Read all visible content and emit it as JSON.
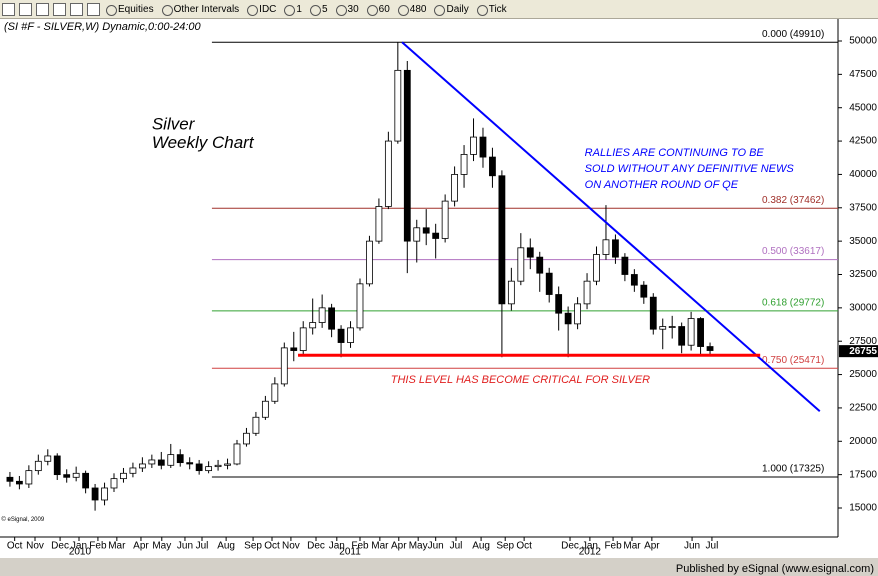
{
  "toolbar": {
    "items": [
      "Equities",
      "Other Intervals",
      "IDC",
      "1",
      "5",
      "30",
      "60",
      "480",
      "Daily",
      "Tick"
    ]
  },
  "footer": "Published by eSignal (www.esignal.com)",
  "chart_data": {
    "type": "candlestick",
    "title": "(SI #F - SILVER,W) Dynamic,0:00-24:00",
    "annotations": [
      {
        "text": "Silver",
        "x": 30,
        "y": 43700,
        "color": "#000000",
        "style": "title"
      },
      {
        "text": "Weekly Chart",
        "x": 30,
        "y": 42300,
        "color": "#000000",
        "style": "title"
      },
      {
        "text": "RALLIES ARE CONTINUING TO BE",
        "x": 121.5,
        "y": 41600,
        "color": "#0000ff",
        "style": "note"
      },
      {
        "text": "SOLD WITHOUT ANY DEFINITIVE NEWS",
        "x": 121.5,
        "y": 40400,
        "color": "#0000ff",
        "style": "note"
      },
      {
        "text": "ON ANOTHER ROUND OF QE",
        "x": 121.5,
        "y": 39200,
        "color": "#0000ff",
        "style": "note"
      },
      {
        "text": "THIS LEVEL HAS BECOME CRITICAL FOR SILVER",
        "x": 80.5,
        "y": 24600,
        "color": "#e02020",
        "style": "note"
      },
      {
        "text": "© eSignal, 2009",
        "x": -1.8,
        "y": 14150,
        "color": "#000000",
        "style": "tiny"
      }
    ],
    "x": [
      0,
      2,
      4,
      6,
      8,
      10,
      12,
      14,
      16,
      18,
      20,
      22,
      24,
      26,
      28,
      30,
      32,
      34,
      36,
      38,
      40,
      42,
      44,
      46,
      48,
      50,
      52,
      54,
      56,
      58,
      60,
      62,
      64,
      66,
      68,
      70,
      72,
      74,
      76,
      78,
      80,
      82,
      84,
      86,
      88,
      90,
      92,
      94,
      96,
      98,
      100,
      102,
      104,
      106,
      108,
      110,
      112,
      114,
      116,
      118,
      120,
      122,
      124,
      126,
      128,
      130,
      132,
      134,
      136,
      138,
      140,
      142,
      144,
      146,
      148
    ],
    "open": [
      17300,
      17000,
      16800,
      17800,
      18500,
      18900,
      17500,
      17300,
      17600,
      16500,
      15600,
      16500,
      17200,
      17600,
      18000,
      18300,
      18600,
      18200,
      19000,
      18400,
      18300,
      17800,
      18100,
      18200,
      18300,
      19800,
      20600,
      21800,
      23000,
      24300,
      27000,
      26800,
      28500,
      28900,
      30000,
      28400,
      27400,
      28500,
      31800,
      35000,
      37600,
      42500,
      47800,
      35000,
      36000,
      35600,
      35200,
      38000,
      40000,
      41500,
      42800,
      41300,
      39900,
      30300,
      32000,
      34500,
      33800,
      32600,
      31000,
      29600,
      28800,
      30300,
      32000,
      34000,
      35100,
      33800,
      32500,
      31700,
      30800,
      28400,
      28600,
      28600,
      27200,
      29200,
      27100
    ],
    "high": [
      17700,
      17400,
      18200,
      19000,
      19400,
      19100,
      17900,
      18100,
      17800,
      16800,
      16900,
      17600,
      18000,
      18400,
      18800,
      19000,
      19200,
      19800,
      19400,
      18800,
      18600,
      18500,
      18600,
      18700,
      20100,
      21000,
      22200,
      23400,
      24800,
      27400,
      28200,
      29000,
      30700,
      31000,
      30300,
      28700,
      29000,
      32200,
      35400,
      38200,
      43200,
      49900,
      48500,
      36600,
      37400,
      36300,
      38500,
      40600,
      42200,
      44200,
      43500,
      42000,
      40300,
      33000,
      35600,
      35200,
      34200,
      33000,
      31600,
      30100,
      30800,
      32600,
      34600,
      37700,
      35500,
      34100,
      32900,
      32000,
      31100,
      29200,
      29400,
      28900,
      29700,
      29300,
      27400
    ],
    "low": [
      16600,
      16400,
      16500,
      17500,
      18200,
      17100,
      16900,
      17000,
      16100,
      14800,
      15200,
      16200,
      16900,
      17300,
      17700,
      18000,
      17900,
      18000,
      18100,
      17900,
      17500,
      17600,
      17800,
      17900,
      18200,
      19600,
      20400,
      21600,
      22800,
      24100,
      26000,
      26500,
      28000,
      28500,
      27800,
      26300,
      27000,
      28300,
      31600,
      34800,
      37400,
      42300,
      32600,
      33400,
      34700,
      33700,
      34900,
      37600,
      39000,
      41000,
      40500,
      39000,
      26300,
      29800,
      31700,
      32900,
      31200,
      30400,
      28300,
      26300,
      28400,
      29900,
      31700,
      33600,
      33300,
      32000,
      31200,
      30300,
      28000,
      26900,
      27700,
      26600,
      26800,
      26500,
      26500
    ],
    "close": [
      17000,
      16800,
      17800,
      18500,
      18900,
      17500,
      17300,
      17600,
      16500,
      15600,
      16500,
      17200,
      17600,
      18000,
      18300,
      18600,
      18200,
      19000,
      18400,
      18300,
      17800,
      18100,
      18200,
      18300,
      19800,
      20600,
      21800,
      23000,
      24300,
      27000,
      26800,
      28500,
      28900,
      30000,
      28400,
      27400,
      28500,
      31800,
      35000,
      37600,
      42500,
      47800,
      35000,
      36000,
      35600,
      35200,
      38000,
      40000,
      41500,
      42800,
      41300,
      39900,
      30300,
      32000,
      34500,
      33800,
      32600,
      31000,
      29600,
      28800,
      30300,
      32000,
      34000,
      35100,
      33800,
      32500,
      31700,
      30800,
      28400,
      28600,
      28600,
      27200,
      29200,
      27100,
      26800
    ],
    "up_color": "#ffffff",
    "down_color": "#000000",
    "last_price": 26755,
    "fib_levels": [
      {
        "label": "0.000 (49910)",
        "value": 49910,
        "start": 42.7,
        "color": "#000000"
      },
      {
        "label": "0.382 (37462)",
        "value": 37462,
        "start": 42.7,
        "color": "#a0302a"
      },
      {
        "label": "0.500 (33617)",
        "value": 33617,
        "start": 42.7,
        "color": "#b070c0"
      },
      {
        "label": "0.618 (29772)",
        "value": 29772,
        "start": 42.7,
        "color": "#30a030"
      },
      {
        "label": "0.750 (25471)",
        "value": 25471,
        "start": 42.7,
        "color": "#d04040"
      },
      {
        "label": "1.000 (17325)",
        "value": 17325,
        "start": 42.7,
        "color": "#000000"
      }
    ],
    "lines": [
      {
        "x": [
          82.9,
          171.2
        ],
        "y": [
          49910,
          22250
        ],
        "color": "#0000ff",
        "width": 2
      },
      {
        "x": [
          60.9,
          158.6
        ],
        "y": [
          26450,
          26450
        ],
        "color": "#ff0000",
        "width": 3
      }
    ],
    "xlim": [
      -2.1,
      175.05
    ],
    "ylim": [
      12976,
      51424
    ],
    "yticks": [
      15000,
      17500,
      20000,
      22500,
      25000,
      27500,
      30000,
      32500,
      35000,
      37500,
      40000,
      42500,
      45000,
      47500,
      50000
    ],
    "xticks": [
      {
        "value": 1,
        "label": "Oct"
      },
      {
        "value": 5.3,
        "label": "Nov"
      },
      {
        "value": 10.6,
        "label": "Dec"
      },
      {
        "value": 14.6,
        "label": "Jan"
      },
      {
        "value": 18.6,
        "label": "Feb"
      },
      {
        "value": 22.6,
        "label": "Mar"
      },
      {
        "value": 27.7,
        "label": "Apr"
      },
      {
        "value": 32.1,
        "label": "May"
      },
      {
        "value": 37,
        "label": "Jun"
      },
      {
        "value": 40.6,
        "label": "Jul"
      },
      {
        "value": 45.7,
        "label": "Aug"
      },
      {
        "value": 51.4,
        "label": "Sep"
      },
      {
        "value": 55.4,
        "label": "Oct"
      },
      {
        "value": 59.4,
        "label": "Nov"
      },
      {
        "value": 64.7,
        "label": "Dec"
      },
      {
        "value": 69.1,
        "label": "Jan"
      },
      {
        "value": 74,
        "label": "Feb"
      },
      {
        "value": 78.2,
        "label": "Mar"
      },
      {
        "value": 82.2,
        "label": "Apr"
      },
      {
        "value": 86.3,
        "label": "May"
      },
      {
        "value": 90,
        "label": "Jun"
      },
      {
        "value": 94.3,
        "label": "Jul"
      },
      {
        "value": 99.6,
        "label": "Aug"
      },
      {
        "value": 104.7,
        "label": "Sep"
      },
      {
        "value": 108.7,
        "label": "Oct"
      },
      {
        "value": 118.4,
        "label": "Dec"
      },
      {
        "value": 122.6,
        "label": "Jan"
      },
      {
        "value": 127.5,
        "label": "Feb"
      },
      {
        "value": 131.5,
        "label": "Mar"
      },
      {
        "value": 135.7,
        "label": "Apr"
      },
      {
        "value": 144.2,
        "label": "Jun"
      },
      {
        "value": 148.4,
        "label": "Jul"
      }
    ],
    "year_labels": [
      {
        "value": 14.8,
        "label": "2010"
      },
      {
        "value": 71.9,
        "label": "2011"
      },
      {
        "value": 122.6,
        "label": "2012"
      }
    ]
  }
}
